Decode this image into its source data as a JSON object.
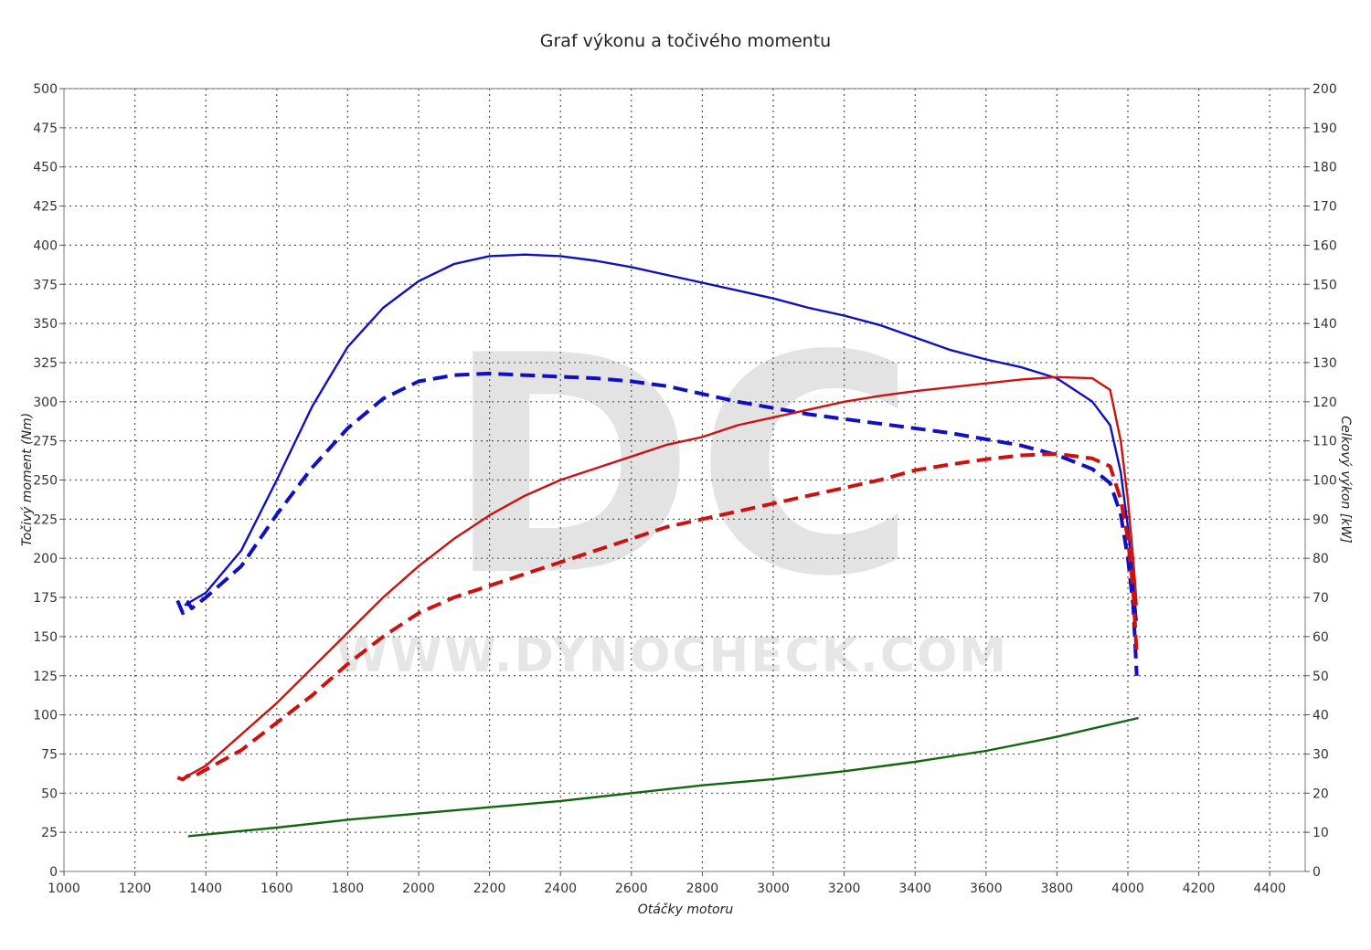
{
  "chart_data": {
    "type": "line",
    "title": "Graf výkonu a točivého momentu",
    "xlabel": "Otáčky motoru",
    "ylabel_left": "Točivý moment (Nm)",
    "ylabel_right": "Celkový výkon [kW]",
    "xlim": [
      1000,
      4500
    ],
    "ylim_left": [
      0,
      500
    ],
    "ylim_right": [
      0,
      200
    ],
    "x_ticks": [
      "1000",
      "1200",
      "1400",
      "1600",
      "1800",
      "2000",
      "2200",
      "2400",
      "2600",
      "2800",
      "3000",
      "3200",
      "3400",
      "3600",
      "3800",
      "4000",
      "4200",
      "4400"
    ],
    "y_left_ticks": [
      "0",
      "25",
      "50",
      "75",
      "100",
      "125",
      "150",
      "175",
      "200",
      "225",
      "250",
      "275",
      "300",
      "325",
      "350",
      "375",
      "400",
      "425",
      "450",
      "475",
      "500"
    ],
    "y_right_ticks": [
      "0",
      "10",
      "20",
      "30",
      "40",
      "50",
      "60",
      "70",
      "80",
      "90",
      "100",
      "110",
      "120",
      "130",
      "140",
      "150",
      "160",
      "170",
      "180",
      "190",
      "200"
    ],
    "grid": true,
    "watermark": {
      "logo": "DC",
      "url": "WWW.DYNOCHECK.COM"
    },
    "series": [
      {
        "axis": "left",
        "color": "#1010c0",
        "style": "solid",
        "points": [
          [
            1340,
            170
          ],
          [
            1400,
            178
          ],
          [
            1500,
            205
          ],
          [
            1600,
            250
          ],
          [
            1700,
            297
          ],
          [
            1800,
            335
          ],
          [
            1900,
            360
          ],
          [
            2000,
            377
          ],
          [
            2100,
            388
          ],
          [
            2200,
            393
          ],
          [
            2300,
            394
          ],
          [
            2400,
            393
          ],
          [
            2500,
            390
          ],
          [
            2600,
            386
          ],
          [
            2700,
            381
          ],
          [
            2800,
            376
          ],
          [
            2900,
            371
          ],
          [
            3000,
            366
          ],
          [
            3100,
            360
          ],
          [
            3200,
            355
          ],
          [
            3300,
            349
          ],
          [
            3400,
            341
          ],
          [
            3500,
            333
          ],
          [
            3600,
            327
          ],
          [
            3700,
            322
          ],
          [
            3800,
            315
          ],
          [
            3900,
            300
          ],
          [
            3950,
            285
          ],
          [
            3980,
            255
          ],
          [
            4000,
            220
          ],
          [
            4015,
            185
          ],
          [
            4025,
            160
          ]
        ]
      },
      {
        "axis": "left",
        "color": "#1010c0",
        "style": "dashed",
        "points": [
          [
            1320,
            173
          ],
          [
            1335,
            165
          ],
          [
            1350,
            172
          ],
          [
            1360,
            168
          ],
          [
            1400,
            175
          ],
          [
            1500,
            195
          ],
          [
            1600,
            228
          ],
          [
            1700,
            258
          ],
          [
            1800,
            283
          ],
          [
            1900,
            302
          ],
          [
            2000,
            313
          ],
          [
            2100,
            317
          ],
          [
            2200,
            318
          ],
          [
            2300,
            317
          ],
          [
            2400,
            316
          ],
          [
            2500,
            315
          ],
          [
            2600,
            313
          ],
          [
            2700,
            310
          ],
          [
            2800,
            305
          ],
          [
            2900,
            300
          ],
          [
            3000,
            296
          ],
          [
            3100,
            292
          ],
          [
            3200,
            289
          ],
          [
            3300,
            286
          ],
          [
            3400,
            283
          ],
          [
            3500,
            280
          ],
          [
            3600,
            276
          ],
          [
            3700,
            272
          ],
          [
            3800,
            266
          ],
          [
            3900,
            257
          ],
          [
            3950,
            248
          ],
          [
            3980,
            228
          ],
          [
            4000,
            200
          ],
          [
            4015,
            170
          ],
          [
            4025,
            125
          ]
        ]
      },
      {
        "axis": "right",
        "color": "#cc1111",
        "style": "solid",
        "points": [
          [
            1340,
            24
          ],
          [
            1400,
            27
          ],
          [
            1500,
            35
          ],
          [
            1600,
            43
          ],
          [
            1700,
            52
          ],
          [
            1800,
            61
          ],
          [
            1900,
            70
          ],
          [
            2000,
            78
          ],
          [
            2100,
            85
          ],
          [
            2200,
            91
          ],
          [
            2300,
            96
          ],
          [
            2400,
            100
          ],
          [
            2500,
            103
          ],
          [
            2600,
            106
          ],
          [
            2700,
            109
          ],
          [
            2800,
            111
          ],
          [
            2900,
            114
          ],
          [
            3000,
            116
          ],
          [
            3100,
            118
          ],
          [
            3200,
            120
          ],
          [
            3300,
            121.5
          ],
          [
            3400,
            122.7
          ],
          [
            3500,
            123.7
          ],
          [
            3600,
            124.7
          ],
          [
            3700,
            125.7
          ],
          [
            3800,
            126.3
          ],
          [
            3900,
            126
          ],
          [
            3950,
            123
          ],
          [
            3980,
            110
          ],
          [
            4000,
            95
          ],
          [
            4015,
            80
          ],
          [
            4025,
            68
          ]
        ]
      },
      {
        "axis": "right",
        "color": "#cc1111",
        "style": "dashed",
        "points": [
          [
            1320,
            24
          ],
          [
            1335,
            23.5
          ],
          [
            1350,
            24.5
          ],
          [
            1360,
            24
          ],
          [
            1400,
            26
          ],
          [
            1500,
            31
          ],
          [
            1600,
            38
          ],
          [
            1700,
            45
          ],
          [
            1800,
            53
          ],
          [
            1900,
            60
          ],
          [
            2000,
            66
          ],
          [
            2100,
            70
          ],
          [
            2200,
            73
          ],
          [
            2300,
            76
          ],
          [
            2400,
            79
          ],
          [
            2500,
            82
          ],
          [
            2600,
            85
          ],
          [
            2700,
            88
          ],
          [
            2800,
            90
          ],
          [
            2900,
            92
          ],
          [
            3000,
            94
          ],
          [
            3100,
            96
          ],
          [
            3200,
            98
          ],
          [
            3300,
            100
          ],
          [
            3400,
            102.5
          ],
          [
            3500,
            104
          ],
          [
            3600,
            105.3
          ],
          [
            3700,
            106.3
          ],
          [
            3800,
            106.7
          ],
          [
            3900,
            105.5
          ],
          [
            3950,
            103.5
          ],
          [
            3980,
            95
          ],
          [
            4000,
            85
          ],
          [
            4015,
            72
          ],
          [
            4025,
            55
          ]
        ]
      },
      {
        "axis": "left",
        "color": "#116611",
        "style": "solid",
        "points": [
          [
            1350,
            22.5
          ],
          [
            1600,
            28
          ],
          [
            1800,
            33
          ],
          [
            2000,
            37
          ],
          [
            2200,
            41
          ],
          [
            2400,
            45
          ],
          [
            2600,
            50
          ],
          [
            2800,
            55
          ],
          [
            3000,
            59
          ],
          [
            3200,
            64
          ],
          [
            3400,
            70
          ],
          [
            3600,
            77
          ],
          [
            3800,
            86
          ],
          [
            4030,
            98
          ]
        ]
      }
    ]
  }
}
